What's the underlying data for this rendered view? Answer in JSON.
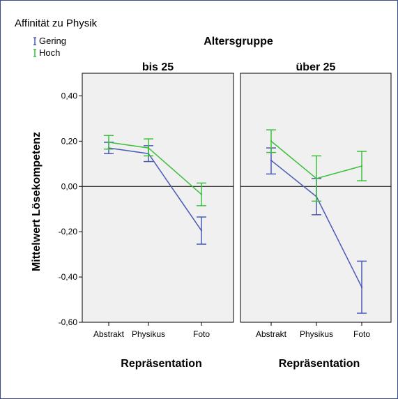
{
  "chart_data": {
    "type": "line",
    "legend": {
      "title": "Affinität zu Physik",
      "placement": "top-left",
      "entries": [
        {
          "name": "Gering",
          "color": "#4a5ab8"
        },
        {
          "name": "Hoch",
          "color": "#3cbf3c"
        }
      ]
    },
    "panel_group_title": "Altersgruppe",
    "ylabel": "Mittelwert Lösekompetenz",
    "xlabel": "Repräsentation",
    "ylim": [
      -0.6,
      0.5
    ],
    "yticks": [
      0.4,
      0.2,
      0.0,
      -0.2,
      -0.4,
      -0.6
    ],
    "ytick_labels": [
      "0,40",
      "0,20",
      "0,00",
      "-0,20",
      "-0,40",
      "-0,60"
    ],
    "categories": [
      "Abstrakt",
      "Physikus",
      "Foto"
    ],
    "reference_line": 0.0,
    "grid": false,
    "panels": [
      {
        "title": "bis 25",
        "series": [
          {
            "name": "Gering",
            "color": "#4a5ab8",
            "values": [
              0.17,
              0.145,
              -0.195
            ],
            "lower": [
              0.145,
              0.11,
              -0.255
            ],
            "upper": [
              0.195,
              0.18,
              -0.135
            ]
          },
          {
            "name": "Hoch",
            "color": "#3cbf3c",
            "values": [
              0.195,
              0.17,
              -0.035
            ],
            "lower": [
              0.165,
              0.135,
              -0.085
            ],
            "upper": [
              0.225,
              0.21,
              0.015
            ]
          }
        ]
      },
      {
        "title": "über 25",
        "series": [
          {
            "name": "Gering",
            "color": "#4a5ab8",
            "values": [
              0.115,
              -0.045,
              -0.445
            ],
            "lower": [
              0.055,
              -0.125,
              -0.56
            ],
            "upper": [
              0.17,
              0.035,
              -0.33
            ]
          },
          {
            "name": "Hoch",
            "color": "#3cbf3c",
            "values": [
              0.2,
              0.035,
              0.09
            ],
            "lower": [
              0.15,
              -0.065,
              0.025
            ],
            "upper": [
              0.25,
              0.135,
              0.155
            ]
          }
        ]
      }
    ]
  }
}
